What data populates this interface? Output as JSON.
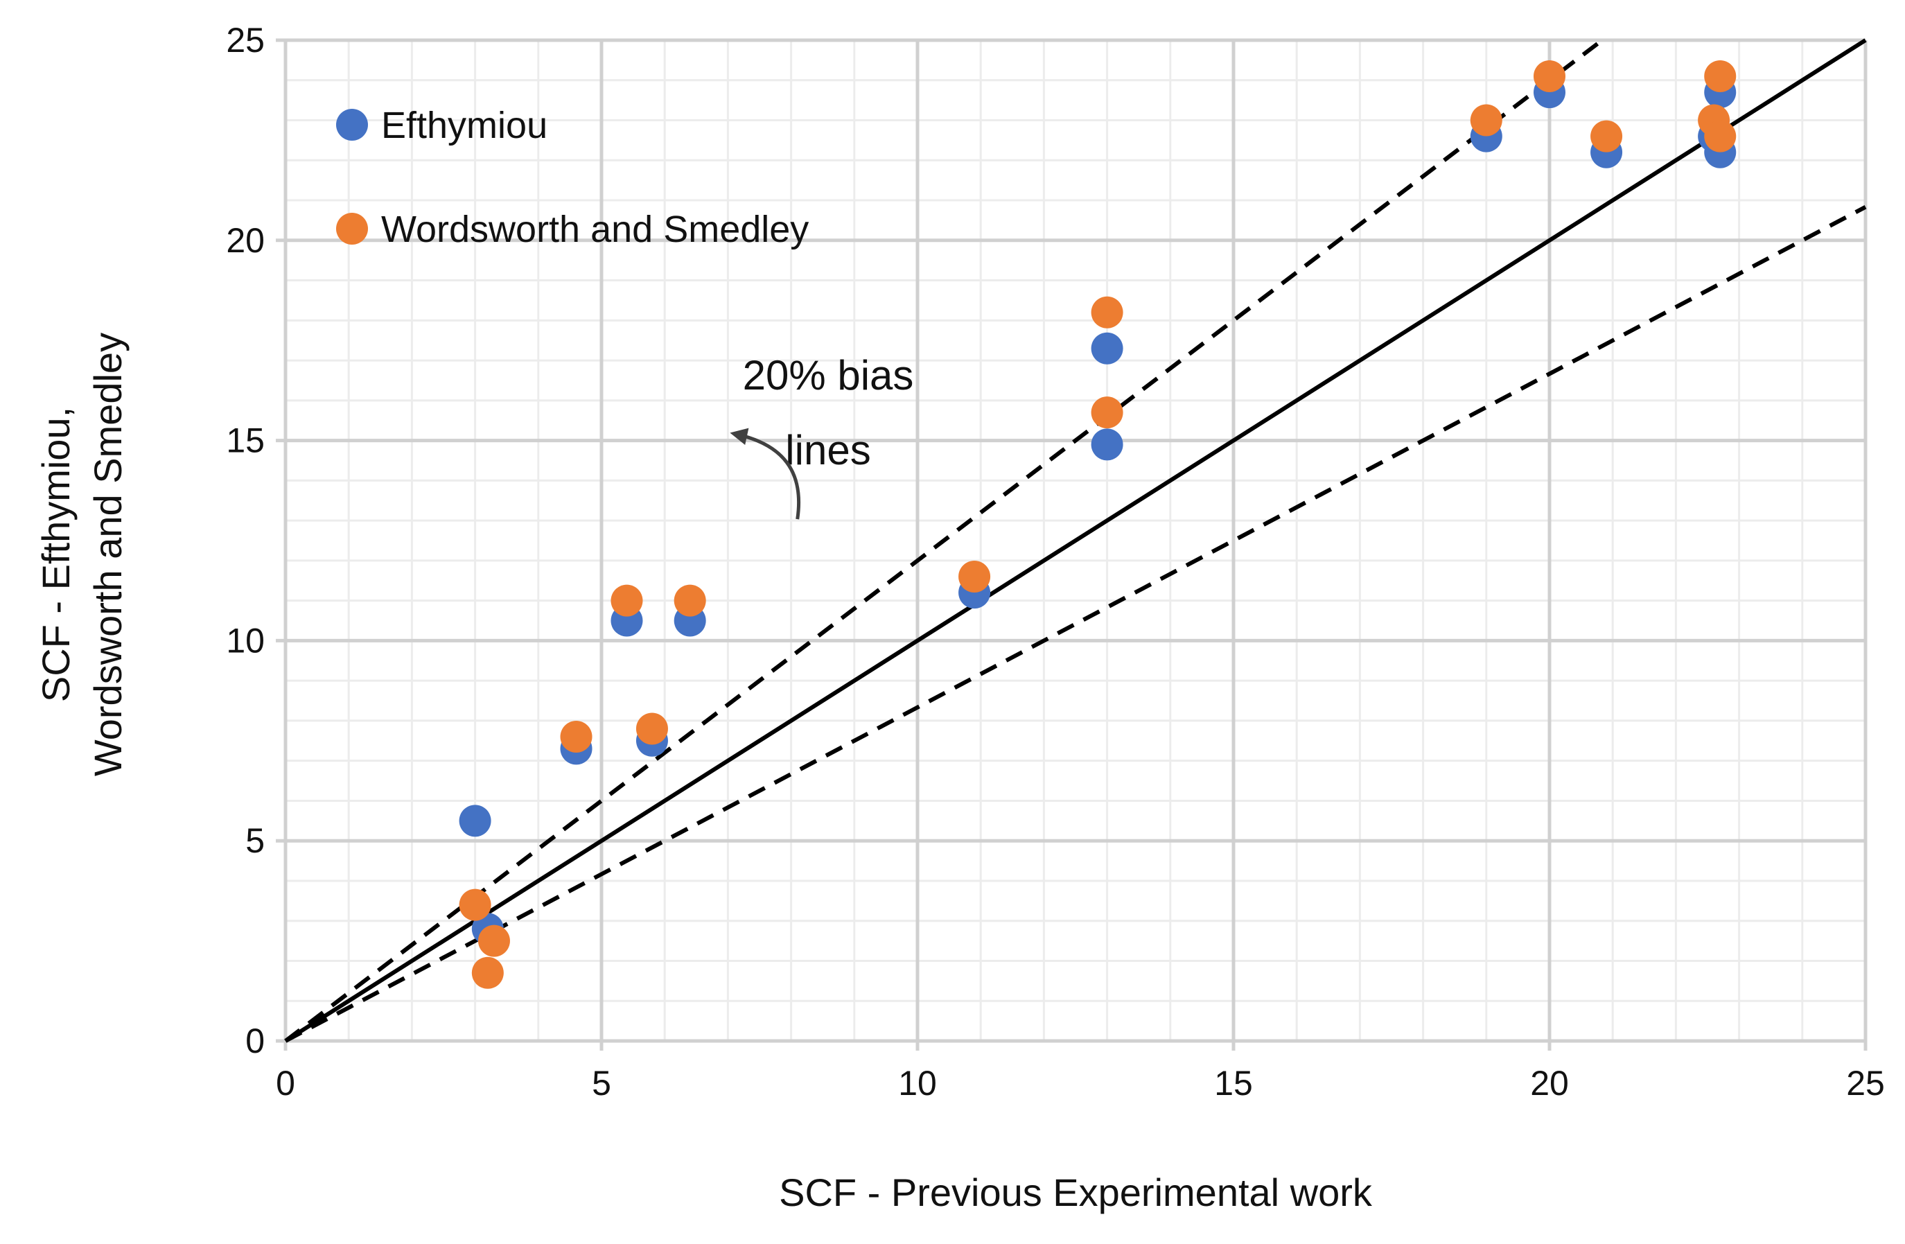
{
  "chart_data": {
    "type": "scatter",
    "title": "",
    "xlabel": "SCF - Previous Experimental work",
    "ylabel_lines": [
      "SCF - Efthymiou,",
      "Wordsworth and Smedley"
    ],
    "xlim": [
      0,
      25
    ],
    "ylim": [
      0,
      25
    ],
    "x_ticks": [
      0,
      5,
      10,
      15,
      20,
      25
    ],
    "y_ticks": [
      0,
      5,
      10,
      15,
      20,
      25
    ],
    "grid": true,
    "legend_position": "top-left",
    "series": [
      {
        "name": "Efthymiou",
        "color": "#4472C4",
        "points": [
          [
            3.0,
            5.5
          ],
          [
            3.2,
            2.8
          ],
          [
            4.6,
            7.3
          ],
          [
            5.4,
            10.5
          ],
          [
            5.8,
            7.5
          ],
          [
            6.4,
            10.5
          ],
          [
            10.9,
            11.2
          ],
          [
            13.0,
            17.3
          ],
          [
            13.0,
            14.9
          ],
          [
            19.0,
            22.6
          ],
          [
            20.0,
            23.7
          ],
          [
            20.9,
            22.2
          ],
          [
            22.6,
            22.6
          ],
          [
            22.7,
            23.7
          ],
          [
            22.7,
            22.2
          ]
        ]
      },
      {
        "name": "Wordsworth and Smedley",
        "color": "#ED7D31",
        "points": [
          [
            3.0,
            3.4
          ],
          [
            3.2,
            1.7
          ],
          [
            3.3,
            2.5
          ],
          [
            4.6,
            7.6
          ],
          [
            5.4,
            11.0
          ],
          [
            5.8,
            7.8
          ],
          [
            6.4,
            11.0
          ],
          [
            10.9,
            11.6
          ],
          [
            13.0,
            18.2
          ],
          [
            13.0,
            15.7
          ],
          [
            19.0,
            23.0
          ],
          [
            20.0,
            24.1
          ],
          [
            20.9,
            22.6
          ],
          [
            22.6,
            23.0
          ],
          [
            22.7,
            24.1
          ],
          [
            22.7,
            22.6
          ]
        ]
      }
    ],
    "reference_lines": [
      {
        "name": "y = x",
        "slope": 1.0,
        "style": "solid"
      },
      {
        "name": "upper 20% bias",
        "slope": 1.2,
        "style": "dashed"
      },
      {
        "name": "lower 20% bias",
        "slope": 0.8333,
        "style": "dashed"
      }
    ],
    "annotation": {
      "lines": [
        "20% bias",
        "lines"
      ],
      "points_to": [
        8.1,
        13.0
      ]
    }
  }
}
